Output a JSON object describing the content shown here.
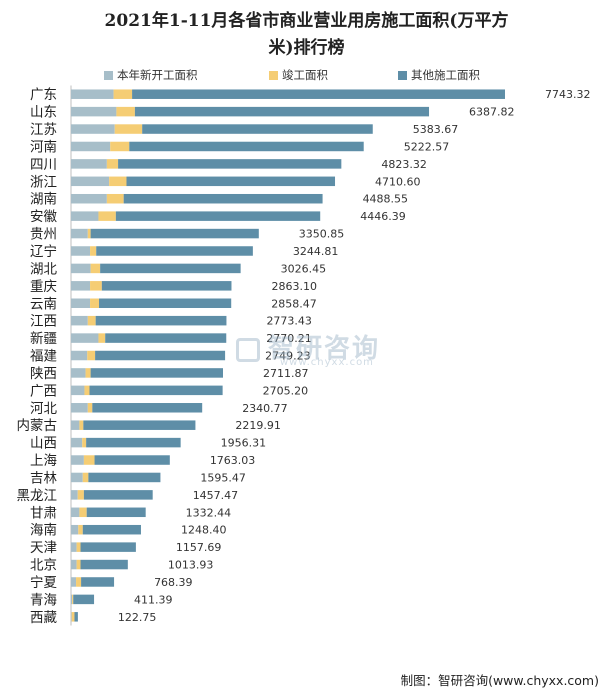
{
  "chart_data": {
    "type": "bar",
    "orientation": "horizontal",
    "stacked": true,
    "title": "2021年1-11月各省市商业营业用房施工面积(万平方米)排行榜",
    "title_lines": [
      "2021年1-11月各省市商业营业用房施工面积(万平方",
      "米)排行榜"
    ],
    "legend_position": "top",
    "grid": false,
    "categories": [
      "广东",
      "山东",
      "江苏",
      "河南",
      "四川",
      "浙江",
      "湖南",
      "安徽",
      "贵州",
      "辽宁",
      "湖北",
      "重庆",
      "云南",
      "江西",
      "新疆",
      "福建",
      "陕西",
      "广西",
      "河北",
      "内蒙古",
      "山西",
      "上海",
      "吉林",
      "黑龙江",
      "甘肃",
      "海南",
      "天津",
      "北京",
      "宁夏",
      "青海",
      "西藏"
    ],
    "totals": [
      7743.32,
      6387.82,
      5383.67,
      5222.57,
      4823.32,
      4710.6,
      4488.55,
      4446.39,
      3350.85,
      3244.81,
      3026.45,
      2863.1,
      2858.47,
      2773.43,
      2770.21,
      2749.23,
      2711.87,
      2705.2,
      2340.77,
      2219.91,
      1956.31,
      1763.03,
      1595.47,
      1457.47,
      1332.44,
      1248.4,
      1157.69,
      1013.93,
      768.39,
      411.39,
      122.75
    ],
    "total_labels": [
      "7743.32",
      "6387.82",
      "5383.67",
      "5222.57",
      "4823.32",
      "4710.60",
      "4488.55",
      "4446.39",
      "3350.85",
      "3244.81",
      "3026.45",
      "2863.10",
      "2858.47",
      "2773.43",
      "2770.21",
      "2749.23",
      "2711.87",
      "2705.20",
      "2340.77",
      "2219.91",
      "1956.31",
      "1763.03",
      "1595.47",
      "1457.47",
      "1332.44",
      "1248.40",
      "1157.69",
      "1013.93",
      "768.39",
      "411.39",
      "122.75"
    ],
    "series": [
      {
        "name": "本年新开工面积",
        "color": "#a7bec9",
        "values": [
          760,
          810,
          780,
          700,
          640,
          680,
          640,
          490,
          300,
          340,
          350,
          340,
          340,
          300,
          490,
          290,
          260,
          240,
          300,
          150,
          200,
          230,
          210,
          120,
          150,
          130,
          100,
          100,
          90,
          20,
          12
        ]
      },
      {
        "name": "竣工面积",
        "color": "#f5cd74",
        "values": [
          330,
          330,
          490,
          340,
          200,
          310,
          300,
          310,
          50,
          110,
          170,
          210,
          160,
          140,
          120,
          140,
          90,
          90,
          80,
          70,
          70,
          190,
          100,
          110,
          130,
          80,
          70,
          70,
          90,
          20,
          50
        ]
      },
      {
        "name": "其他施工面积",
        "color": "#5e8ea7",
        "values": [
          6653.32,
          5247.82,
          4113.67,
          4182.57,
          3983.32,
          3720.6,
          3548.55,
          3646.39,
          3000.85,
          2794.81,
          2506.45,
          2313.1,
          2358.47,
          2333.43,
          2160.21,
          2319.23,
          2361.87,
          2375.2,
          1960.77,
          1999.91,
          1686.31,
          1343.03,
          1285.47,
          1227.47,
          1052.44,
          1038.4,
          987.69,
          843.93,
          588.39,
          371.39,
          60.75
        ]
      }
    ],
    "xlim": [
      0,
      7743.32
    ]
  },
  "watermark": {
    "text": "智研咨询",
    "sub": "www.chyxx.com"
  },
  "footer": "制图：智研咨询(www.chyxx.com)"
}
